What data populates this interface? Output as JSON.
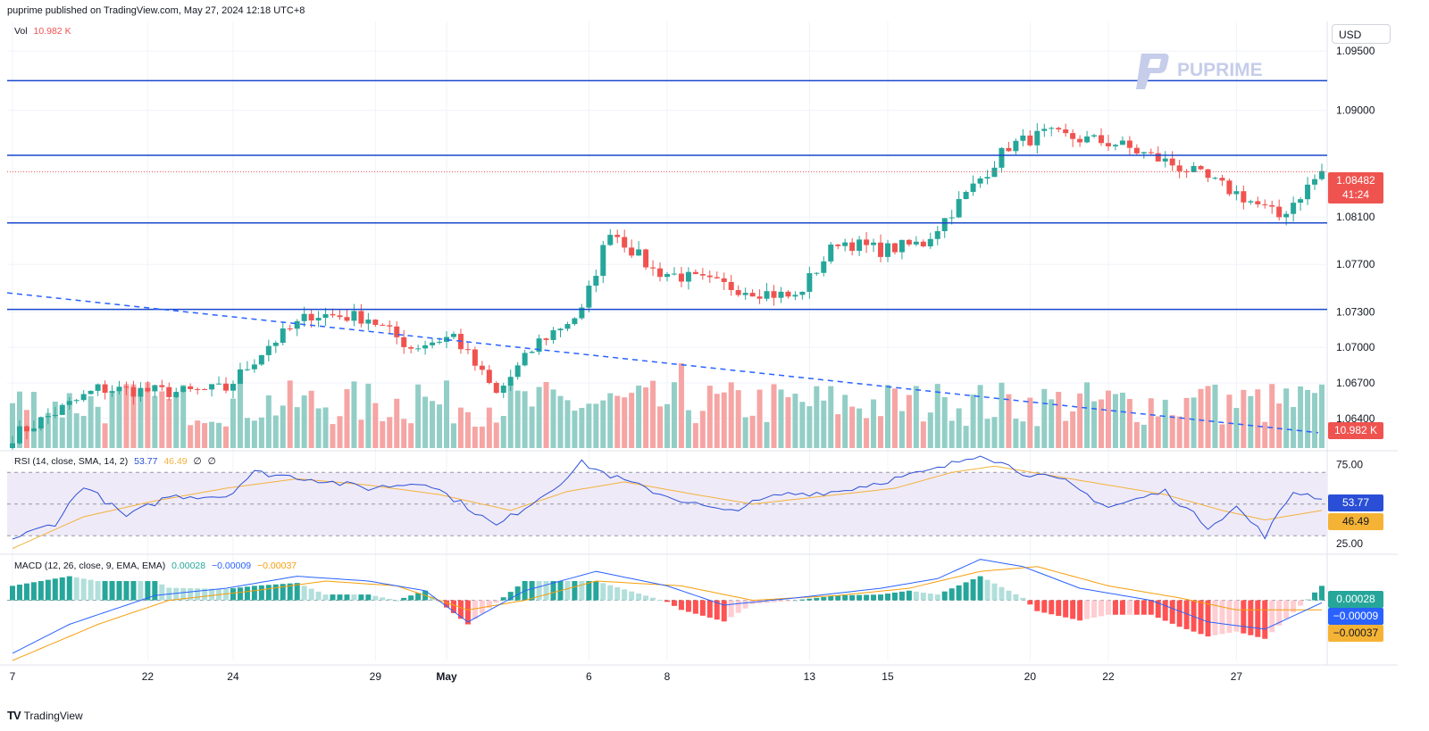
{
  "header": {
    "published": "puprime published on TradingView.com, May 27, 2024 12:18 UTC+8"
  },
  "currency": "USD",
  "watermark": "PUPRIME",
  "footer": {
    "brand": "TradingView"
  },
  "colors": {
    "up": "#26a69a",
    "down": "#ef5350",
    "vol_up": "#92cec6",
    "vol_down": "#f5a5a4",
    "line": "#1848cc",
    "trend": "#2962ff",
    "rsi": "#2a4fd6",
    "rsi_ma": "#f2b33d",
    "macd": "#2962ff",
    "signal": "#f59e0b"
  },
  "vol_legend": {
    "label": "Vol",
    "value": "10.982 K"
  },
  "rsi_legend": {
    "label": "RSI (14, close, SMA, 14, 2)",
    "v1": "53.77",
    "v2": "46.49",
    "v3": "∅",
    "v4": "∅"
  },
  "macd_legend": {
    "label": "MACD (12, 26, close, 9, EMA, EMA)",
    "v1": "0.00028",
    "v2": "−0.00009",
    "v3": "−0.00037"
  },
  "tags": {
    "price": "1.08482",
    "countdown": "41:24",
    "volume": "10.982 K",
    "rsi": "53.77",
    "rsi_ma": "46.49",
    "hist": "0.00028",
    "macd": "−0.00009",
    "signal": "−0.00037"
  },
  "chart_data": {
    "type": "candlestick",
    "symbol_price_axis": {
      "ticks": [
        "1.09500",
        "1.09000",
        "1.08100",
        "1.07700",
        "1.07300",
        "1.07000",
        "1.06700",
        "1.06400"
      ],
      "ylim": [
        1.0615,
        1.0975
      ]
    },
    "x_ticks": [
      "7",
      "22",
      "24",
      "29",
      "May",
      "6",
      "8",
      "13",
      "15",
      "20",
      "22",
      "27"
    ],
    "horizontal_lines": [
      1.0925,
      1.0862,
      1.0805,
      1.0732
    ],
    "trendline": {
      "from": [
        0,
        1.0746
      ],
      "to": [
        184,
        1.0628
      ]
    },
    "last_price": 1.08482,
    "rsi_axis": {
      "ticks": [
        "75.00",
        "25.00"
      ],
      "bands": [
        70,
        30
      ],
      "ylim": [
        20,
        82
      ]
    },
    "macd_axis": {
      "ylim": [
        -0.0025,
        0.0018
      ]
    },
    "ohlc_anchors": [
      [
        0,
        1.0625
      ],
      [
        12,
        1.0665
      ],
      [
        24,
        1.0662
      ],
      [
        30,
        1.0665
      ],
      [
        36,
        1.0702
      ],
      [
        42,
        1.0728
      ],
      [
        50,
        1.0725
      ],
      [
        56,
        1.07
      ],
      [
        62,
        1.071
      ],
      [
        68,
        1.066
      ],
      [
        74,
        1.0705
      ],
      [
        80,
        1.073
      ],
      [
        84,
        1.08
      ],
      [
        90,
        1.0765
      ],
      [
        100,
        1.0752
      ],
      [
        110,
        1.0742
      ],
      [
        116,
        1.079
      ],
      [
        122,
        1.0782
      ],
      [
        128,
        1.0788
      ],
      [
        132,
        1.0815
      ],
      [
        140,
        1.087
      ],
      [
        145,
        1.088
      ],
      [
        155,
        1.0872
      ],
      [
        165,
        1.085
      ],
      [
        172,
        1.083
      ],
      [
        178,
        1.081
      ],
      [
        184,
        1.0848
      ]
    ],
    "rsi_anchors": [
      [
        0,
        28
      ],
      [
        6,
        38
      ],
      [
        10,
        62
      ],
      [
        16,
        42
      ],
      [
        22,
        55
      ],
      [
        30,
        55
      ],
      [
        34,
        70
      ],
      [
        42,
        66
      ],
      [
        50,
        60
      ],
      [
        58,
        64
      ],
      [
        64,
        48
      ],
      [
        68,
        36
      ],
      [
        76,
        60
      ],
      [
        80,
        76
      ],
      [
        84,
        68
      ],
      [
        92,
        55
      ],
      [
        100,
        45
      ],
      [
        108,
        56
      ],
      [
        116,
        58
      ],
      [
        122,
        64
      ],
      [
        130,
        72
      ],
      [
        136,
        82
      ],
      [
        142,
        70
      ],
      [
        148,
        64
      ],
      [
        154,
        48
      ],
      [
        162,
        58
      ],
      [
        168,
        36
      ],
      [
        172,
        48
      ],
      [
        176,
        30
      ],
      [
        180,
        58
      ],
      [
        184,
        54
      ]
    ],
    "rsi_ma_anchors": [
      [
        0,
        22
      ],
      [
        10,
        42
      ],
      [
        20,
        52
      ],
      [
        30,
        60
      ],
      [
        40,
        66
      ],
      [
        50,
        62
      ],
      [
        60,
        56
      ],
      [
        70,
        46
      ],
      [
        78,
        58
      ],
      [
        86,
        64
      ],
      [
        96,
        56
      ],
      [
        104,
        50
      ],
      [
        116,
        56
      ],
      [
        124,
        60
      ],
      [
        132,
        70
      ],
      [
        138,
        74
      ],
      [
        146,
        68
      ],
      [
        154,
        62
      ],
      [
        162,
        56
      ],
      [
        170,
        46
      ],
      [
        176,
        40
      ],
      [
        184,
        46
      ]
    ],
    "macd_anchors": [
      [
        0,
        -0.0022
      ],
      [
        8,
        -0.001
      ],
      [
        20,
        0.0002
      ],
      [
        30,
        0.0005
      ],
      [
        40,
        0.001
      ],
      [
        50,
        0.0008
      ],
      [
        58,
        0.0004
      ],
      [
        64,
        -0.0009
      ],
      [
        72,
        0.0004
      ],
      [
        82,
        0.0012
      ],
      [
        92,
        0.0006
      ],
      [
        100,
        -0.0002
      ],
      [
        110,
        0.0001
      ],
      [
        122,
        0.0005
      ],
      [
        130,
        0.0009
      ],
      [
        136,
        0.0017
      ],
      [
        142,
        0.0014
      ],
      [
        150,
        0.0005
      ],
      [
        160,
        0.0
      ],
      [
        168,
        -0.0009
      ],
      [
        176,
        -0.0012
      ],
      [
        184,
        -0.0001
      ]
    ],
    "signal_anchors": [
      [
        0,
        -0.0025
      ],
      [
        12,
        -0.001
      ],
      [
        22,
        0.0
      ],
      [
        34,
        0.0004
      ],
      [
        44,
        0.0008
      ],
      [
        54,
        0.0006
      ],
      [
        64,
        -0.0004
      ],
      [
        72,
        0.0
      ],
      [
        82,
        0.0008
      ],
      [
        94,
        0.0006
      ],
      [
        104,
        0.0
      ],
      [
        116,
        0.0002
      ],
      [
        126,
        0.0005
      ],
      [
        136,
        0.0012
      ],
      [
        144,
        0.0014
      ],
      [
        154,
        0.0006
      ],
      [
        164,
        0.0001
      ],
      [
        172,
        -0.0004
      ],
      [
        184,
        -0.0004
      ]
    ]
  }
}
